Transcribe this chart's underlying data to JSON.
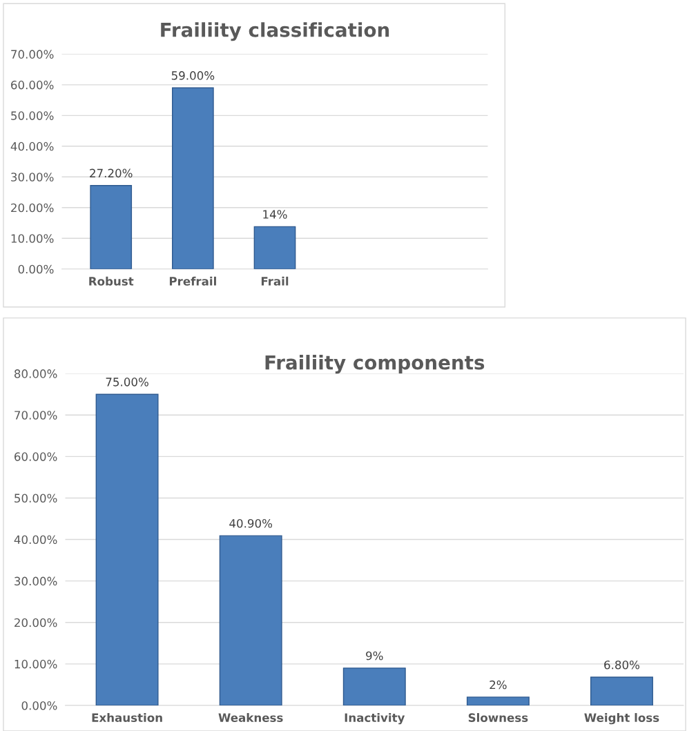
{
  "chart_data": [
    {
      "type": "bar",
      "title": "Frailiity classification",
      "categories": [
        "Robust",
        "Prefrail",
        "Frail"
      ],
      "values": [
        27.2,
        59.0,
        13.8
      ],
      "value_labels": [
        "27.20%",
        "59.00%",
        "14%"
      ],
      "color": "#4a7ebb",
      "ylim": [
        0,
        70
      ],
      "yticks": [
        {
          "value": 0,
          "label": "0.00%"
        },
        {
          "value": 10,
          "label": "10.00%"
        },
        {
          "value": 20,
          "label": "20.00%"
        },
        {
          "value": 30,
          "label": "30.00%"
        },
        {
          "value": 40,
          "label": "40.00%"
        },
        {
          "value": 50,
          "label": "50.00%"
        },
        {
          "value": 60,
          "label": "60.00%"
        },
        {
          "value": 70,
          "label": "70.00%"
        }
      ],
      "grid": "y"
    },
    {
      "type": "bar",
      "title": "Frailiity components",
      "categories": [
        "Exhaustion",
        "Weakness",
        "Inactivity",
        "Slowness",
        "Weight loss"
      ],
      "values": [
        75.0,
        40.9,
        9.0,
        2.0,
        6.8
      ],
      "value_labels": [
        "75.00%",
        "40.90%",
        "9%",
        "2%",
        "6.80%"
      ],
      "color": "#4a7ebb",
      "ylim": [
        0,
        80
      ],
      "yticks": [
        {
          "value": 0,
          "label": "0.00%"
        },
        {
          "value": 10,
          "label": "10.00%"
        },
        {
          "value": 20,
          "label": "20.00%"
        },
        {
          "value": 30,
          "label": "30.00%"
        },
        {
          "value": 40,
          "label": "40.00%"
        },
        {
          "value": 50,
          "label": "50.00%"
        },
        {
          "value": 60,
          "label": "60.00%"
        },
        {
          "value": 70,
          "label": "70.00%"
        },
        {
          "value": 80,
          "label": "80.00%"
        }
      ],
      "grid": "y"
    }
  ]
}
